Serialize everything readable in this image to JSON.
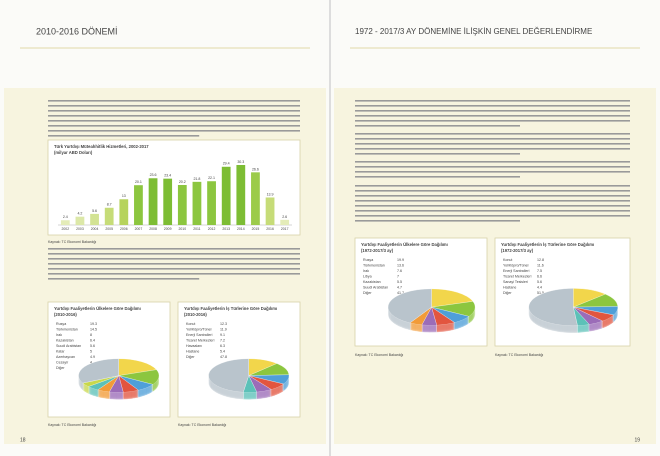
{
  "pages": [
    {
      "title": "2010-2016 DÖNEMİ",
      "page_number": "18"
    },
    {
      "title": "1972 - 2017/3 AY DÖNEMİNE İLİŞKİN GENEL DEĞERLENDİRME",
      "page_number": "19"
    }
  ],
  "chart_data": [
    {
      "type": "bar",
      "title": "Türk Yurtdışı Müteahhitlik Hizmetleri, 2002-2017",
      "subtitle": "(milyar ABD Doları)",
      "source": "Kaynak: TC Ekonomi Bakanlığı",
      "categories": [
        "2002",
        "2003",
        "2004",
        "2005",
        "2006",
        "2007",
        "2008",
        "2009",
        "2010",
        "2011",
        "2012",
        "2013",
        "2014",
        "2015",
        "2016",
        "2017"
      ],
      "values": [
        2.4,
        4.2,
        5.6,
        8.7,
        13.0,
        20.1,
        23.6,
        23.4,
        20.2,
        21.8,
        22.1,
        29.4,
        30.3,
        26.6,
        13.9,
        2.6
      ],
      "colors": [
        "#e4ecb8",
        "#dce8a8",
        "#d3e393",
        "#c6dc78",
        "#b6d35c",
        "#8cc63f",
        "#7dbd34",
        "#7dbd34",
        "#8cc63f",
        "#8cc63f",
        "#8cc63f",
        "#7dbd34",
        "#7dbd34",
        "#9ccb4a",
        "#c6dc78",
        "#e4ecb8"
      ]
    },
    {
      "type": "pie",
      "title": "Yurtdışı Faaliyetlerin Ülkelere Göre Dağılımı",
      "subtitle": "(2010-2016)",
      "source": "Kaynak: TC Ekonomi Bakanlığı",
      "names": [
        "Rusya",
        "Türkmenistan",
        "Irak",
        "Kazakistan",
        "Suudi Arabistan",
        "Katar",
        "Azerbaycan",
        "Cezayir",
        "Diğer"
      ],
      "values": [
        19.3,
        14.5,
        8.0,
        6.4,
        5.6,
        5.0,
        4.9,
        4.0,
        32.3
      ],
      "colors": [
        "#f2d64b",
        "#8cc63f",
        "#4f9fd8",
        "#e2553f",
        "#9b6cb8",
        "#f29b38",
        "#5cc1b8",
        "#c8d84a",
        "#b9c4cc"
      ]
    },
    {
      "type": "pie",
      "title": "Yurtdışı Faaliyetlerin İş Türlerine Göre Dağılımı",
      "subtitle": "(2010-2016)",
      "source": "Kaynak: TC Ekonomi Bakanlığı",
      "names": [
        "Konut",
        "Yol/Köprü/Tünel",
        "Enerji Santralleri",
        "Ticaret Merkezleri",
        "Havaalanı",
        "Hastane",
        "Diğer"
      ],
      "values": [
        12.3,
        11.9,
        9.1,
        7.2,
        6.3,
        5.4,
        47.8
      ],
      "colors": [
        "#f2d64b",
        "#8cc63f",
        "#4f9fd8",
        "#e2553f",
        "#9b6cb8",
        "#5cc1b8",
        "#b9c4cc"
      ]
    },
    {
      "type": "pie",
      "title": "Yurtdışı Faaliyetlerin Ülkelere Göre Dağılımı",
      "subtitle": "(1972-2017/3 ay)",
      "source": "Kaynak: TC Ekonomi Bakanlığı",
      "names": [
        "Rusya",
        "Türkmenistan",
        "Irak",
        "Libya",
        "Kazakistan",
        "Suudi Arabistan",
        "Diğer"
      ],
      "values": [
        19.9,
        13.6,
        7.6,
        7.0,
        5.5,
        4.7,
        41.7
      ],
      "colors": [
        "#f2d64b",
        "#8cc63f",
        "#4f9fd8",
        "#e2553f",
        "#9b6cb8",
        "#f29b38",
        "#b9c4cc"
      ]
    },
    {
      "type": "pie",
      "title": "Yurtdışı Faaliyetlerin İş Türlerine Göre Dağılımı",
      "subtitle": "(1972-2017/3 ay)",
      "source": "Kaynak: TC Ekonomi Bakanlığı",
      "names": [
        "Konut",
        "Yol/Köprü/Tünel",
        "Enerji Santralleri",
        "Ticaret Merkezleri",
        "Sanayi Tesisleri",
        "Hastane",
        "Diğer"
      ],
      "values": [
        12.8,
        11.6,
        7.5,
        6.6,
        5.6,
        4.4,
        51.5
      ],
      "colors": [
        "#f2d64b",
        "#8cc63f",
        "#4f9fd8",
        "#e2553f",
        "#9b6cb8",
        "#5cc1b8",
        "#b9c4cc"
      ]
    }
  ]
}
